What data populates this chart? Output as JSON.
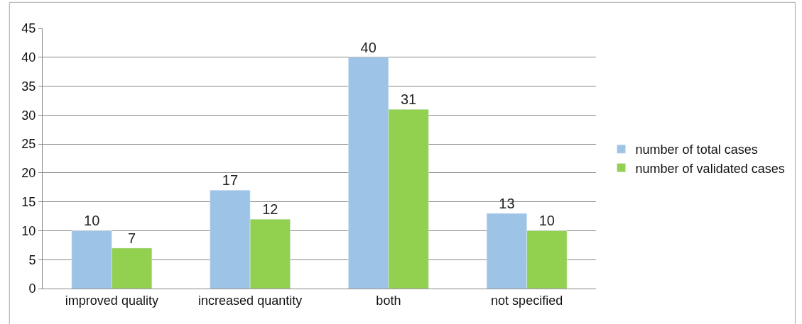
{
  "chart_data": {
    "type": "bar",
    "categories": [
      "improved quality",
      "increased quantity",
      "both",
      "not specified"
    ],
    "series": [
      {
        "name": "number of total cases",
        "color": "#9dc3e6",
        "values": [
          10,
          17,
          40,
          13
        ]
      },
      {
        "name": "number of validated cases",
        "color": "#92d050",
        "values": [
          7,
          12,
          31,
          10
        ]
      }
    ],
    "ylim": [
      0,
      45
    ],
    "yticks": [
      0,
      5,
      10,
      15,
      20,
      25,
      30,
      35,
      40,
      45
    ],
    "grid": "y",
    "legend": "right",
    "data_labels": true
  }
}
